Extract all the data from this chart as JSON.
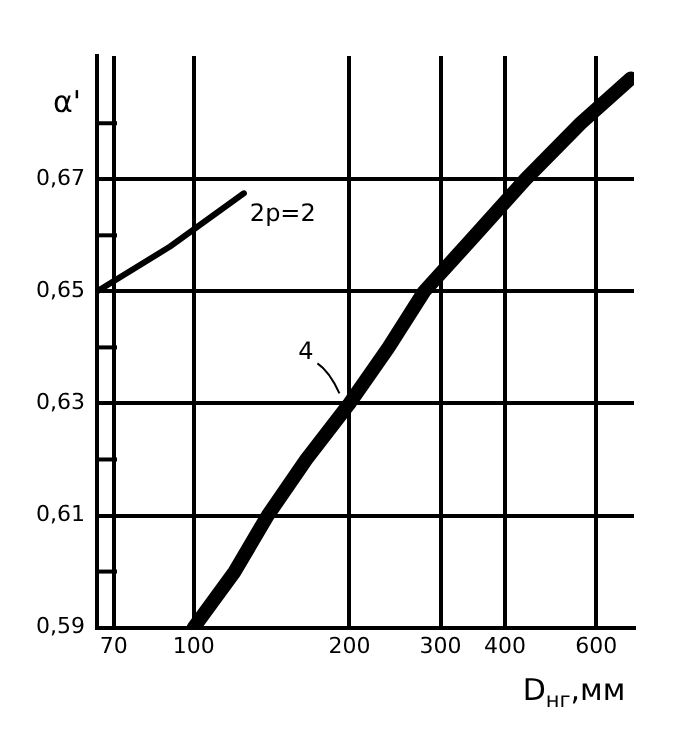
{
  "chart_data": {
    "type": "line",
    "xlabel": "D$_{нг}$,мм",
    "ylabel": "α'",
    "log": "x",
    "grid": true,
    "marker": "none",
    "line_style": "solid",
    "xlim": [
      65,
      710
    ],
    "xticks": [
      70,
      100,
      200,
      300,
      400,
      600
    ],
    "ylim": [
      0.59,
      0.692
    ],
    "yticks": [
      {
        "value": 0.59,
        "label": "0,59"
      },
      {
        "value": 0.6,
        "label": null
      },
      {
        "value": 0.61,
        "label": "0,61"
      },
      {
        "value": 0.62,
        "label": null
      },
      {
        "value": 0.63,
        "label": "0,63"
      },
      {
        "value": 0.64,
        "label": null
      },
      {
        "value": 0.65,
        "label": "0,65"
      },
      {
        "value": 0.66,
        "label": null
      },
      {
        "value": 0.67,
        "label": "0,67"
      },
      {
        "value": 0.68,
        "label": null
      }
    ],
    "series": [
      {
        "color": "#000000",
        "x": [
          65,
          90,
          125
        ],
        "values": [
          0.65,
          0.658,
          0.6675
        ]
      },
      {
        "color": "#000000",
        "x": [
          100,
          120,
          139,
          165,
          200,
          238,
          279,
          350,
          438,
          560,
          700
        ],
        "values": [
          0.59,
          0.6,
          0.61,
          0.62,
          0.63,
          0.64,
          0.65,
          0.66,
          0.67,
          0.68,
          0.688
        ]
      }
    ],
    "annotations": [
      {
        "text": "2p=2",
        "x": 125,
        "y": 0.6675
      },
      {
        "text": "4",
        "x": 200,
        "y": 0.63
      }
    ]
  }
}
